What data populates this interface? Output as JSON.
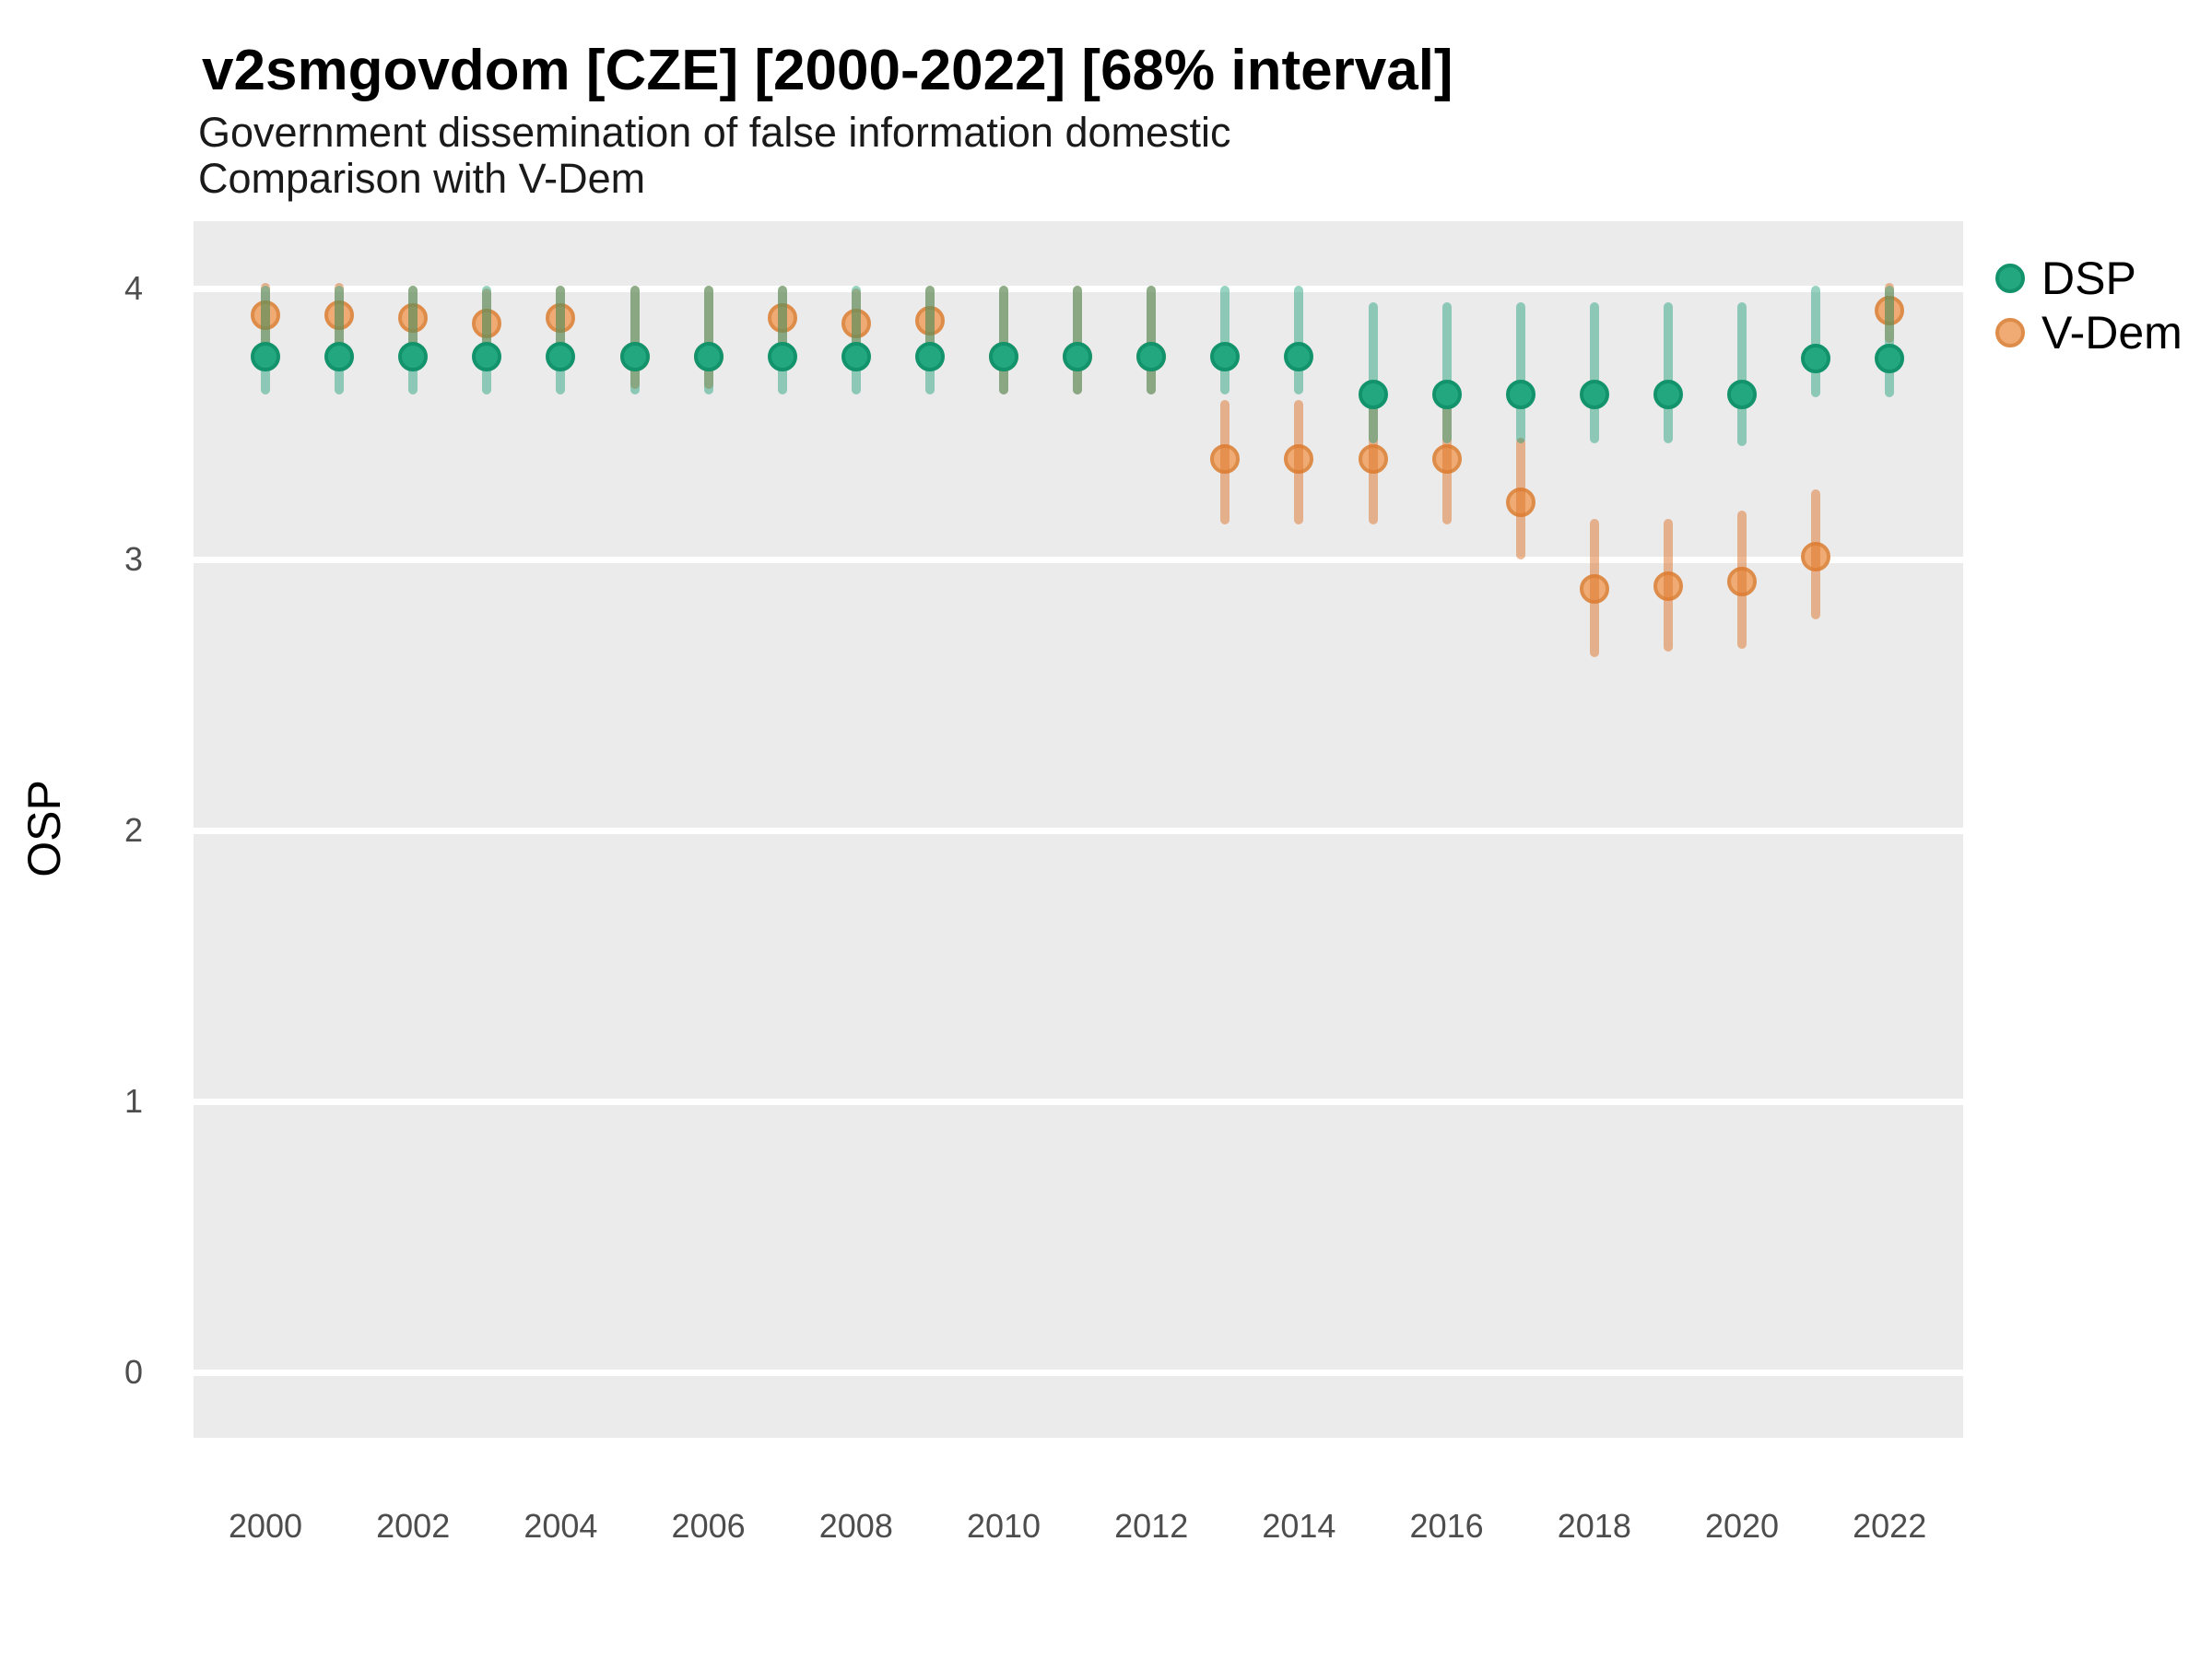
{
  "header": {
    "title": "v2smgovdom [CZE] [2000-2022] [68% interval]",
    "subtitle_line1": "Government dissemination of false information domestic",
    "subtitle_line2": "Comparison with V-Dem"
  },
  "axes": {
    "y_title": "OSP"
  },
  "colors": {
    "page_bg": "#FFFFFF",
    "panel_bg": "#EBEBEB",
    "gridline": "#FFFFFF",
    "dsp_point_fill": "#23a77f",
    "dsp_point_stroke": "#12936b",
    "dsp_bar": "rgba(27,158,119,0.45)",
    "vdem_point_fill": "#efab73",
    "vdem_point_stroke": "#de8c49",
    "vdem_bar": "rgba(221,118,44,0.5)",
    "tick_text": "#4d4d4d",
    "title_text": "#000000"
  },
  "chart_data": {
    "type": "pointrange",
    "title": "v2smgovdom [CZE] [2000-2022] [68% interval]",
    "subtitle": "Government dissemination of false information domestic — Comparison with V-Dem",
    "interval_level": "68%",
    "xlabel": "",
    "ylabel": "OSP",
    "ylim": [
      0,
      4
    ],
    "yticks": [
      0,
      1,
      2,
      3,
      4
    ],
    "xticks": [
      2000,
      2002,
      2004,
      2006,
      2008,
      2010,
      2012,
      2014,
      2016,
      2018,
      2020,
      2022
    ],
    "grid": "horizontal-major-only",
    "legend_position": "right",
    "series": [
      {
        "name": "DSP",
        "point_fill": "#23a77f",
        "point_stroke": "#12936b",
        "bar_color": "rgba(27,158,119,0.45)",
        "data": [
          {
            "year": 2000,
            "y": 3.75,
            "lo": 3.61,
            "hi": 4.01
          },
          {
            "year": 2001,
            "y": 3.75,
            "lo": 3.61,
            "hi": 4.01
          },
          {
            "year": 2002,
            "y": 3.75,
            "lo": 3.61,
            "hi": 4.01
          },
          {
            "year": 2003,
            "y": 3.75,
            "lo": 3.61,
            "hi": 4.01
          },
          {
            "year": 2004,
            "y": 3.75,
            "lo": 3.61,
            "hi": 4.01
          },
          {
            "year": 2005,
            "y": 3.75,
            "lo": 3.61,
            "hi": 4.01
          },
          {
            "year": 2006,
            "y": 3.75,
            "lo": 3.61,
            "hi": 4.01
          },
          {
            "year": 2007,
            "y": 3.75,
            "lo": 3.61,
            "hi": 4.01
          },
          {
            "year": 2008,
            "y": 3.75,
            "lo": 3.61,
            "hi": 4.01
          },
          {
            "year": 2009,
            "y": 3.75,
            "lo": 3.61,
            "hi": 4.01
          },
          {
            "year": 2010,
            "y": 3.75,
            "lo": 3.61,
            "hi": 4.01
          },
          {
            "year": 2011,
            "y": 3.75,
            "lo": 3.61,
            "hi": 4.01
          },
          {
            "year": 2012,
            "y": 3.75,
            "lo": 3.61,
            "hi": 4.01
          },
          {
            "year": 2013,
            "y": 3.75,
            "lo": 3.61,
            "hi": 4.01
          },
          {
            "year": 2014,
            "y": 3.75,
            "lo": 3.61,
            "hi": 4.01
          },
          {
            "year": 2015,
            "y": 3.61,
            "lo": 3.43,
            "hi": 3.95
          },
          {
            "year": 2016,
            "y": 3.61,
            "lo": 3.43,
            "hi": 3.95
          },
          {
            "year": 2017,
            "y": 3.61,
            "lo": 3.43,
            "hi": 3.95
          },
          {
            "year": 2018,
            "y": 3.61,
            "lo": 3.43,
            "hi": 3.95
          },
          {
            "year": 2019,
            "y": 3.61,
            "lo": 3.43,
            "hi": 3.95
          },
          {
            "year": 2020,
            "y": 3.61,
            "lo": 3.42,
            "hi": 3.95
          },
          {
            "year": 2021,
            "y": 3.74,
            "lo": 3.6,
            "hi": 4.01
          },
          {
            "year": 2022,
            "y": 3.74,
            "lo": 3.6,
            "hi": 4.01
          }
        ]
      },
      {
        "name": "V-Dem",
        "point_fill": "#efab73",
        "point_stroke": "#de8c49",
        "bar_color": "rgba(221,118,44,0.5)",
        "data": [
          {
            "year": 2000,
            "y": 3.9,
            "lo": 3.78,
            "hi": 4.02
          },
          {
            "year": 2001,
            "y": 3.9,
            "lo": 3.78,
            "hi": 4.02
          },
          {
            "year": 2002,
            "y": 3.89,
            "lo": 3.77,
            "hi": 4.01
          },
          {
            "year": 2003,
            "y": 3.87,
            "lo": 3.75,
            "hi": 4.0
          },
          {
            "year": 2004,
            "y": 3.89,
            "lo": 3.77,
            "hi": 4.01
          },
          {
            "year": 2005,
            "y": 3.75,
            "lo": 3.63,
            "hi": 4.01
          },
          {
            "year": 2006,
            "y": 3.75,
            "lo": 3.63,
            "hi": 4.01
          },
          {
            "year": 2007,
            "y": 3.89,
            "lo": 3.77,
            "hi": 4.01
          },
          {
            "year": 2008,
            "y": 3.87,
            "lo": 3.76,
            "hi": 4.0
          },
          {
            "year": 2009,
            "y": 3.88,
            "lo": 3.76,
            "hi": 4.01
          },
          {
            "year": 2010,
            "y": 3.75,
            "lo": 3.61,
            "hi": 4.01
          },
          {
            "year": 2011,
            "y": 3.75,
            "lo": 3.61,
            "hi": 4.01
          },
          {
            "year": 2012,
            "y": 3.75,
            "lo": 3.61,
            "hi": 4.01
          },
          {
            "year": 2013,
            "y": 3.37,
            "lo": 3.13,
            "hi": 3.59
          },
          {
            "year": 2014,
            "y": 3.37,
            "lo": 3.13,
            "hi": 3.59
          },
          {
            "year": 2015,
            "y": 3.37,
            "lo": 3.13,
            "hi": 3.59
          },
          {
            "year": 2016,
            "y": 3.37,
            "lo": 3.13,
            "hi": 3.59
          },
          {
            "year": 2017,
            "y": 3.21,
            "lo": 3.0,
            "hi": 3.45
          },
          {
            "year": 2018,
            "y": 2.89,
            "lo": 2.64,
            "hi": 3.15
          },
          {
            "year": 2019,
            "y": 2.9,
            "lo": 2.66,
            "hi": 3.15
          },
          {
            "year": 2020,
            "y": 2.92,
            "lo": 2.67,
            "hi": 3.18
          },
          {
            "year": 2021,
            "y": 3.01,
            "lo": 2.78,
            "hi": 3.26
          },
          {
            "year": 2022,
            "y": 3.92,
            "lo": 3.8,
            "hi": 4.02
          }
        ]
      }
    ]
  }
}
